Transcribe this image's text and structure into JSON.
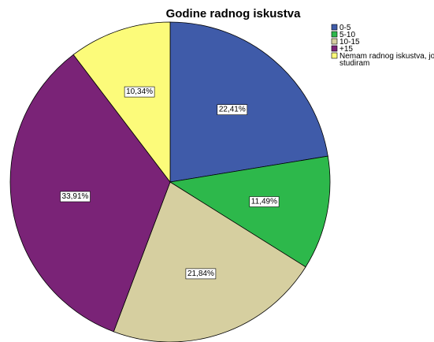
{
  "chart_data": {
    "type": "pie",
    "title": "Godine radnog iskustva",
    "slices": [
      {
        "label": "0-5",
        "value": 22.41,
        "value_label": "22,41%",
        "color": "#3F5BA9"
      },
      {
        "label": "5-10",
        "value": 11.49,
        "value_label": "11,49%",
        "color": "#2DB84B"
      },
      {
        "label": "10-15",
        "value": 21.84,
        "value_label": "21,84%",
        "color": "#D6CFA0"
      },
      {
        "label": "+15",
        "value": 33.91,
        "value_label": "33,91%",
        "color": "#7A2377"
      },
      {
        "label": "Nemam radnog iskustva, još studiram",
        "value": 10.34,
        "value_label": "10,34%",
        "color": "#FCFB7A"
      }
    ],
    "start": "12 o'clock",
    "direction": "clockwise",
    "legend": "top-right"
  }
}
